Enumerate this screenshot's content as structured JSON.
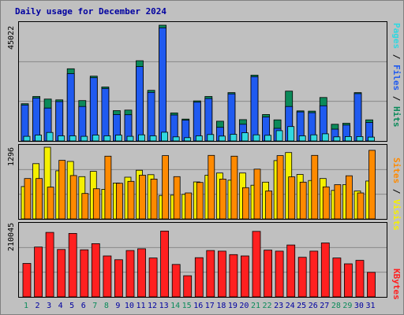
{
  "title": "Daily usage for December 2024",
  "colors": {
    "hits": "#0b8a5a",
    "files": "#1f5af0",
    "pages": "#30d8e0",
    "visits": "#f5f000",
    "sites": "#ff8a00",
    "kbytes": "#ff2020",
    "weekend": "#0b8a5a",
    "weekday": "#0000a0"
  },
  "labels": {
    "pages": "Pages",
    "files": "Files",
    "hits": "Hits",
    "sites": "Sites",
    "visits": "Visits",
    "kbytes": "KBytes",
    "sep": " / "
  },
  "ymax": {
    "top": "45022",
    "middle": "1296",
    "bottom": "210045"
  },
  "chart_data": [
    {
      "type": "bar",
      "title": "Daily usage for December 2024",
      "categories": [
        "1",
        "2",
        "3",
        "4",
        "5",
        "6",
        "7",
        "8",
        "9",
        "10",
        "11",
        "12",
        "13",
        "14",
        "15",
        "16",
        "17",
        "18",
        "19",
        "20",
        "21",
        "22",
        "23",
        "24",
        "25",
        "26",
        "27",
        "28",
        "29",
        "30",
        "31"
      ],
      "weekend_days": [
        "1",
        "7",
        "8",
        "14",
        "15",
        "21",
        "22",
        "28",
        "29"
      ],
      "ylim": [
        0,
        45022
      ],
      "series": [
        {
          "name": "Hits",
          "values": [
            14500,
            17300,
            16300,
            16000,
            28100,
            15700,
            25200,
            21000,
            11800,
            12000,
            31200,
            19700,
            45022,
            10900,
            8500,
            15600,
            17300,
            7700,
            18800,
            8300,
            25600,
            10300,
            8200,
            19400,
            11700,
            11600,
            16900,
            6500,
            6900,
            18800,
            8200
          ]
        },
        {
          "name": "Files",
          "values": [
            14000,
            16700,
            12800,
            15300,
            26200,
            13400,
            24600,
            20400,
            10300,
            10200,
            28900,
            18900,
            44000,
            10100,
            8100,
            15100,
            16500,
            5300,
            18300,
            6500,
            25000,
            9300,
            4900,
            13400,
            11300,
            11000,
            13700,
            4600,
            6200,
            18400,
            7200
          ]
        },
        {
          "name": "Pages",
          "values": [
            1800,
            2300,
            3300,
            2000,
            2000,
            1800,
            2300,
            2000,
            2300,
            1800,
            2400,
            2000,
            3400,
            1600,
            1300,
            2000,
            2500,
            1900,
            2600,
            3200,
            2400,
            2200,
            4000,
            5600,
            2000,
            2400,
            2800,
            1600,
            1700,
            1700,
            1500
          ]
        }
      ]
    },
    {
      "type": "bar",
      "ylim": [
        0,
        1296
      ],
      "series": [
        {
          "name": "Sites",
          "values": [
            730,
            730,
            575,
            1060,
            785,
            460,
            545,
            1135,
            645,
            680,
            790,
            720,
            1145,
            765,
            470,
            660,
            1150,
            720,
            1135,
            565,
            900,
            505,
            1145,
            760,
            665,
            1150,
            580,
            620,
            780,
            470,
            1240
          ]
        },
        {
          "name": "Visits",
          "values": [
            585,
            1000,
            1296,
            870,
            1040,
            765,
            860,
            535,
            650,
            755,
            880,
            800,
            425,
            430,
            445,
            670,
            790,
            830,
            700,
            830,
            610,
            665,
            1055,
            1200,
            805,
            695,
            730,
            515,
            620,
            505,
            685
          ]
        }
      ]
    },
    {
      "type": "bar",
      "ylim": [
        0,
        210045
      ],
      "series": [
        {
          "name": "KBytes",
          "values": [
            98000,
            146000,
            189000,
            139000,
            186000,
            138000,
            156000,
            120000,
            109000,
            136000,
            141000,
            114000,
            193000,
            95000,
            62000,
            115000,
            136000,
            134000,
            124000,
            120000,
            192000,
            137000,
            134000,
            152000,
            116000,
            134000,
            158000,
            114000,
            97000,
            107000,
            72000
          ]
        }
      ]
    }
  ]
}
